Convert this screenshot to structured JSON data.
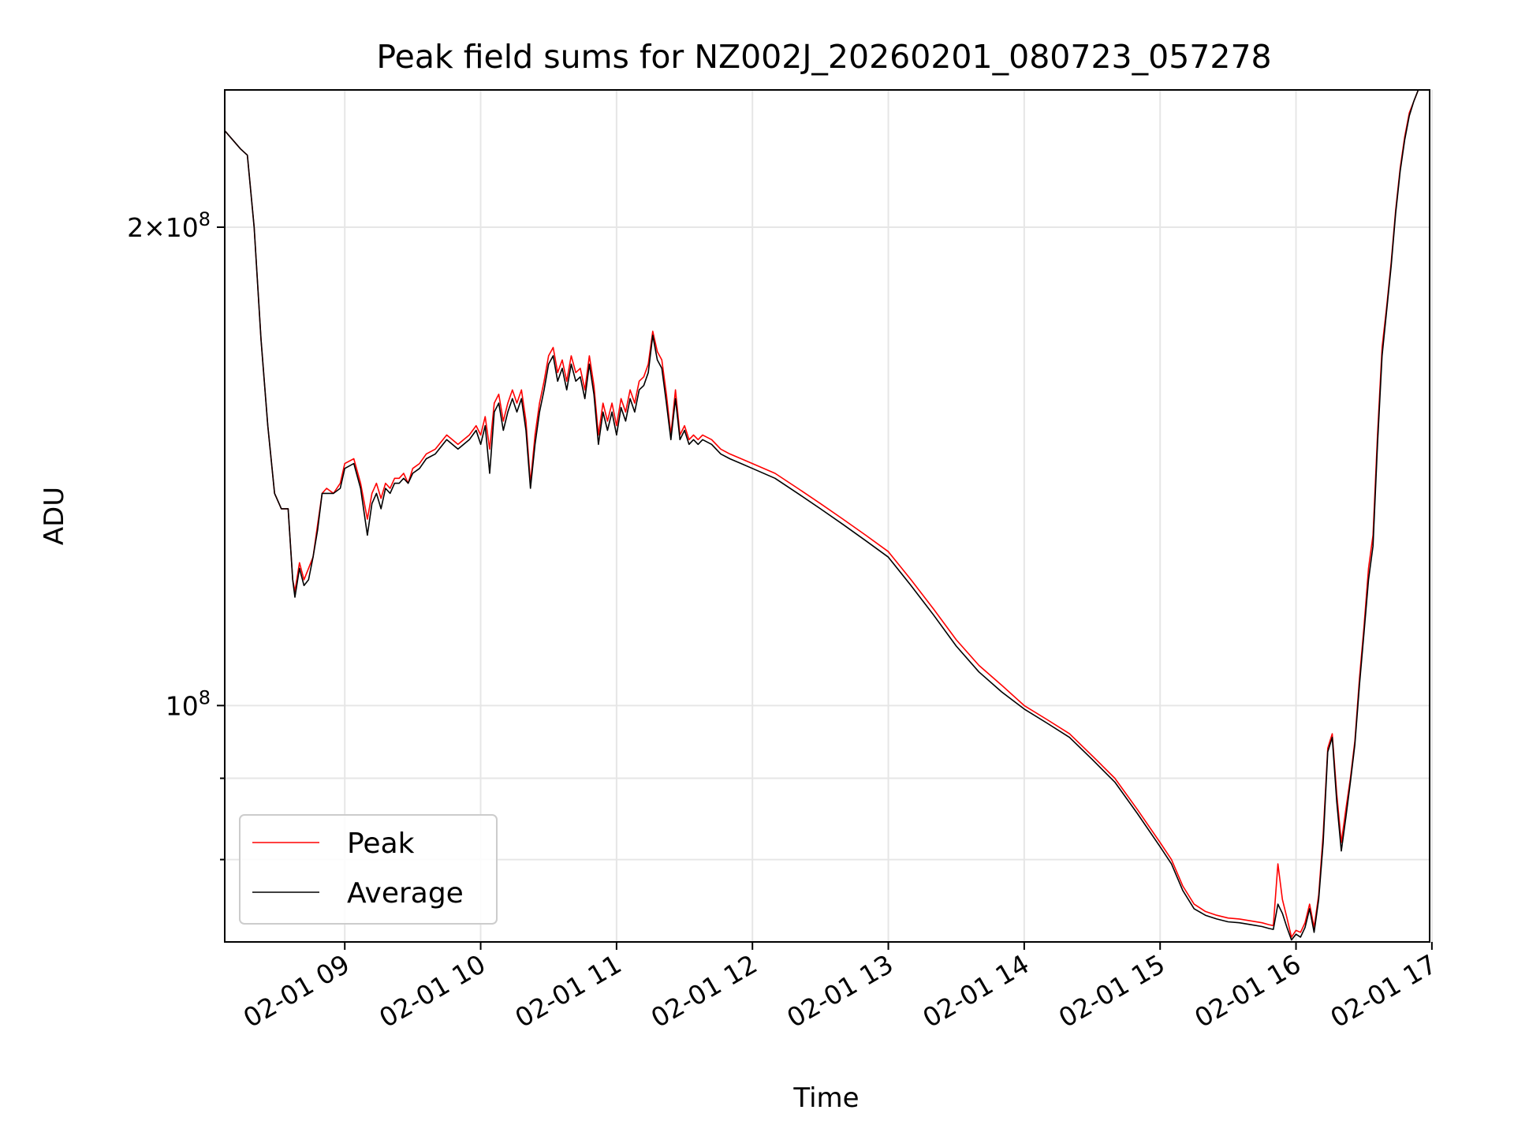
{
  "chart_data": {
    "type": "line",
    "title": "Peak field sums for NZ002J_20260201_080723_057278",
    "xlabel": "Time",
    "ylabel": "ADU",
    "yscale": "log",
    "grid": true,
    "legend_position": "lower-left",
    "xlim": [
      "2026-02-01 08:07",
      "2026-02-01 16:59"
    ],
    "ylim": [
      71000000,
      244000000
    ],
    "x_ticks": [
      "02-01 09",
      "02-01 10",
      "02-01 11",
      "02-01 12",
      "02-01 13",
      "02-01 14",
      "02-01 15",
      "02-01 16",
      "02-01 17"
    ],
    "y_ticks": [
      {
        "label_base": "2×10",
        "label_exp": "8",
        "value": 200000000
      },
      {
        "label_base": "10",
        "label_exp": "8",
        "value": 100000000
      }
    ],
    "y_minor_ticks": [
      90000000,
      80000000,
      70000000
    ],
    "x": [
      "08:07",
      "08:14",
      "08:17",
      "08:20",
      "08:23",
      "08:26",
      "08:29",
      "08:32",
      "08:35",
      "08:37",
      "08:38",
      "08:40",
      "08:42",
      "08:44",
      "08:46",
      "08:48",
      "08:50",
      "08:52",
      "08:55",
      "08:58",
      "09:00",
      "09:04",
      "09:07",
      "09:10",
      "09:12",
      "09:14",
      "09:16",
      "09:18",
      "09:20",
      "09:22",
      "09:24",
      "09:26",
      "09:28",
      "09:30",
      "09:33",
      "09:36",
      "09:40",
      "09:45",
      "09:50",
      "09:55",
      "09:58",
      "10:00",
      "10:02",
      "10:04",
      "10:06",
      "10:08",
      "10:10",
      "10:12",
      "10:14",
      "10:16",
      "10:18",
      "10:20",
      "10:22",
      "10:24",
      "10:26",
      "10:28",
      "10:30",
      "10:32",
      "10:34",
      "10:36",
      "10:38",
      "10:40",
      "10:42",
      "10:44",
      "10:46",
      "10:48",
      "10:50",
      "10:52",
      "10:54",
      "10:56",
      "10:58",
      "11:00",
      "11:02",
      "11:04",
      "11:06",
      "11:08",
      "11:10",
      "11:12",
      "11:14",
      "11:16",
      "11:18",
      "11:20",
      "11:22",
      "11:24",
      "11:26",
      "11:28",
      "11:30",
      "11:32",
      "11:34",
      "11:36",
      "11:38",
      "11:42",
      "11:46",
      "11:50",
      "11:55",
      "12:00",
      "12:10",
      "12:20",
      "12:30",
      "12:40",
      "12:50",
      "13:00",
      "13:10",
      "13:20",
      "13:30",
      "13:40",
      "13:50",
      "14:00",
      "14:10",
      "14:20",
      "14:30",
      "14:40",
      "14:50",
      "15:00",
      "15:05",
      "15:10",
      "15:15",
      "15:20",
      "15:25",
      "15:30",
      "15:35",
      "15:40",
      "15:45",
      "15:48",
      "15:50",
      "15:52",
      "15:54",
      "15:56",
      "15:58",
      "16:00",
      "16:02",
      "16:04",
      "16:06",
      "16:08",
      "16:10",
      "16:12",
      "16:14",
      "16:16",
      "16:18",
      "16:20",
      "16:22",
      "16:24",
      "16:26",
      "16:28",
      "16:30",
      "16:32",
      "16:34",
      "16:36",
      "16:38",
      "16:40",
      "16:42",
      "16:44",
      "16:46",
      "16:48",
      "16:50",
      "16:52",
      "16:54",
      "16:56",
      "16:59"
    ],
    "series": [
      {
        "name": "Peak",
        "color": "#ff0000",
        "values": [
          230000000.0,
          224000000.0,
          222000000.0,
          200000000.0,
          170000000.0,
          150000000.0,
          136000000.0,
          133000000.0,
          133000000.0,
          120000000.0,
          118000000.0,
          123000000.0,
          120000000.0,
          122000000.0,
          124000000.0,
          130000000.0,
          136000000.0,
          137000000.0,
          136000000.0,
          138000000.0,
          142000000.0,
          143000000.0,
          138000000.0,
          131000000.0,
          136000000.0,
          138000000.0,
          135000000.0,
          138000000.0,
          137000000.0,
          139000000.0,
          139000000.0,
          140000000.0,
          138000000.0,
          141000000.0,
          142000000.0,
          144000000.0,
          145000000.0,
          148000000.0,
          146000000.0,
          148000000.0,
          150000000.0,
          148000000.0,
          152000000.0,
          145000000.0,
          155000000.0,
          157000000.0,
          151000000.0,
          155000000.0,
          158000000.0,
          155000000.0,
          158000000.0,
          151000000.0,
          138000000.0,
          148000000.0,
          155000000.0,
          160000000.0,
          166000000.0,
          168000000.0,
          162000000.0,
          165000000.0,
          160000000.0,
          166000000.0,
          162000000.0,
          163000000.0,
          158000000.0,
          166000000.0,
          159000000.0,
          148000000.0,
          155000000.0,
          151000000.0,
          155000000.0,
          150000000.0,
          156000000.0,
          153000000.0,
          158000000.0,
          155000000.0,
          160000000.0,
          161000000.0,
          164000000.0,
          172000000.0,
          167000000.0,
          165000000.0,
          157000000.0,
          148000000.0,
          158000000.0,
          148000000.0,
          150000000.0,
          147000000.0,
          148000000.0,
          147000000.0,
          148000000.0,
          147000000.0,
          145000000.0,
          144000000.0,
          143000000.0,
          142000000.0,
          140000000.0,
          137000000.0,
          134000000.0,
          131000000.0,
          128000000.0,
          125000000.0,
          120000000.0,
          115000000.0,
          110000000.0,
          106000000.0,
          103000000.0,
          100000000.0,
          98000000.0,
          96000000.0,
          93000000.0,
          90000000.0,
          86000000.0,
          82000000.0,
          80000000.0,
          77000000.0,
          75000000.0,
          74200000.0,
          73800000.0,
          73500000.0,
          73400000.0,
          73200000.0,
          73000000.0,
          72800000.0,
          72700000.0,
          79500000.0,
          75500000.0,
          73500000.0,
          71500000.0,
          72200000.0,
          72000000.0,
          73000000.0,
          75000000.0,
          72500000.0,
          76000000.0,
          83000000.0,
          94000000.0,
          96000000.0,
          88000000.0,
          82000000.0,
          86000000.0,
          90000000.0,
          95000000.0,
          104000000.0,
          112000000.0,
          122000000.0,
          128000000.0,
          148000000.0,
          168000000.0,
          178000000.0,
          190000000.0,
          205000000.0,
          218000000.0,
          228000000.0,
          236000000.0,
          240000000.0,
          244000000.0,
          244000000.0,
          244000000.0
        ]
      },
      {
        "name": "Average",
        "color": "#000000",
        "values": [
          230000000.0,
          224000000.0,
          222000000.0,
          200000000.0,
          170000000.0,
          150000000.0,
          136000000.0,
          133000000.0,
          133000000.0,
          120000000.0,
          117000000.0,
          122000000.0,
          119000000.0,
          120000000.0,
          124000000.0,
          129000000.0,
          136000000.0,
          136000000.0,
          136000000.0,
          137000000.0,
          141000000.0,
          142000000.0,
          137000000.0,
          128000000.0,
          134000000.0,
          136000000.0,
          133000000.0,
          137000000.0,
          136000000.0,
          138000000.0,
          138000000.0,
          139000000.0,
          138000000.0,
          140000000.0,
          141000000.0,
          143000000.0,
          144000000.0,
          147000000.0,
          145000000.0,
          147000000.0,
          149000000.0,
          146000000.0,
          150000000.0,
          140000000.0,
          153000000.0,
          155000000.0,
          149000000.0,
          153000000.0,
          156000000.0,
          153000000.0,
          156000000.0,
          149000000.0,
          137000000.0,
          146000000.0,
          153000000.0,
          158000000.0,
          164000000.0,
          166000000.0,
          160000000.0,
          163000000.0,
          158000000.0,
          164000000.0,
          160000000.0,
          161000000.0,
          156000000.0,
          164000000.0,
          157000000.0,
          146000000.0,
          153000000.0,
          149000000.0,
          153000000.0,
          148000000.0,
          154000000.0,
          151000000.0,
          156000000.0,
          153000000.0,
          158000000.0,
          159000000.0,
          162000000.0,
          171000000.0,
          165000000.0,
          163000000.0,
          155000000.0,
          147000000.0,
          156000000.0,
          147000000.0,
          149000000.0,
          146000000.0,
          147000000.0,
          146000000.0,
          147000000.0,
          146000000.0,
          144000000.0,
          143000000.0,
          142000000.0,
          141000000.0,
          139000000.0,
          136000000.0,
          133000000.0,
          130000000.0,
          127000000.0,
          124000000.0,
          119000000.0,
          114000000.0,
          109000000.0,
          105000000.0,
          102000000.0,
          99500000.0,
          97500000.0,
          95500000.0,
          92500000.0,
          89500000.0,
          85500000.0,
          81500000.0,
          79500000.0,
          76500000.0,
          74500000.0,
          73800000.0,
          73400000.0,
          73100000.0,
          73000000.0,
          72800000.0,
          72600000.0,
          72400000.0,
          72300000.0,
          75000000.0,
          74000000.0,
          72500000.0,
          71200000.0,
          71800000.0,
          71500000.0,
          72500000.0,
          74500000.0,
          72000000.0,
          75500000.0,
          82000000.0,
          93500000.0,
          95500000.0,
          87000000.0,
          81000000.0,
          85000000.0,
          89500000.0,
          94500000.0,
          103000000.0,
          111000000.0,
          120000000.0,
          126000000.0,
          146000000.0,
          166000000.0,
          177000000.0,
          189000000.0,
          204000000.0,
          217000000.0,
          227000000.0,
          235000000.0,
          240000000.0,
          244000000.0,
          244000000.0,
          244000000.0
        ]
      }
    ]
  }
}
